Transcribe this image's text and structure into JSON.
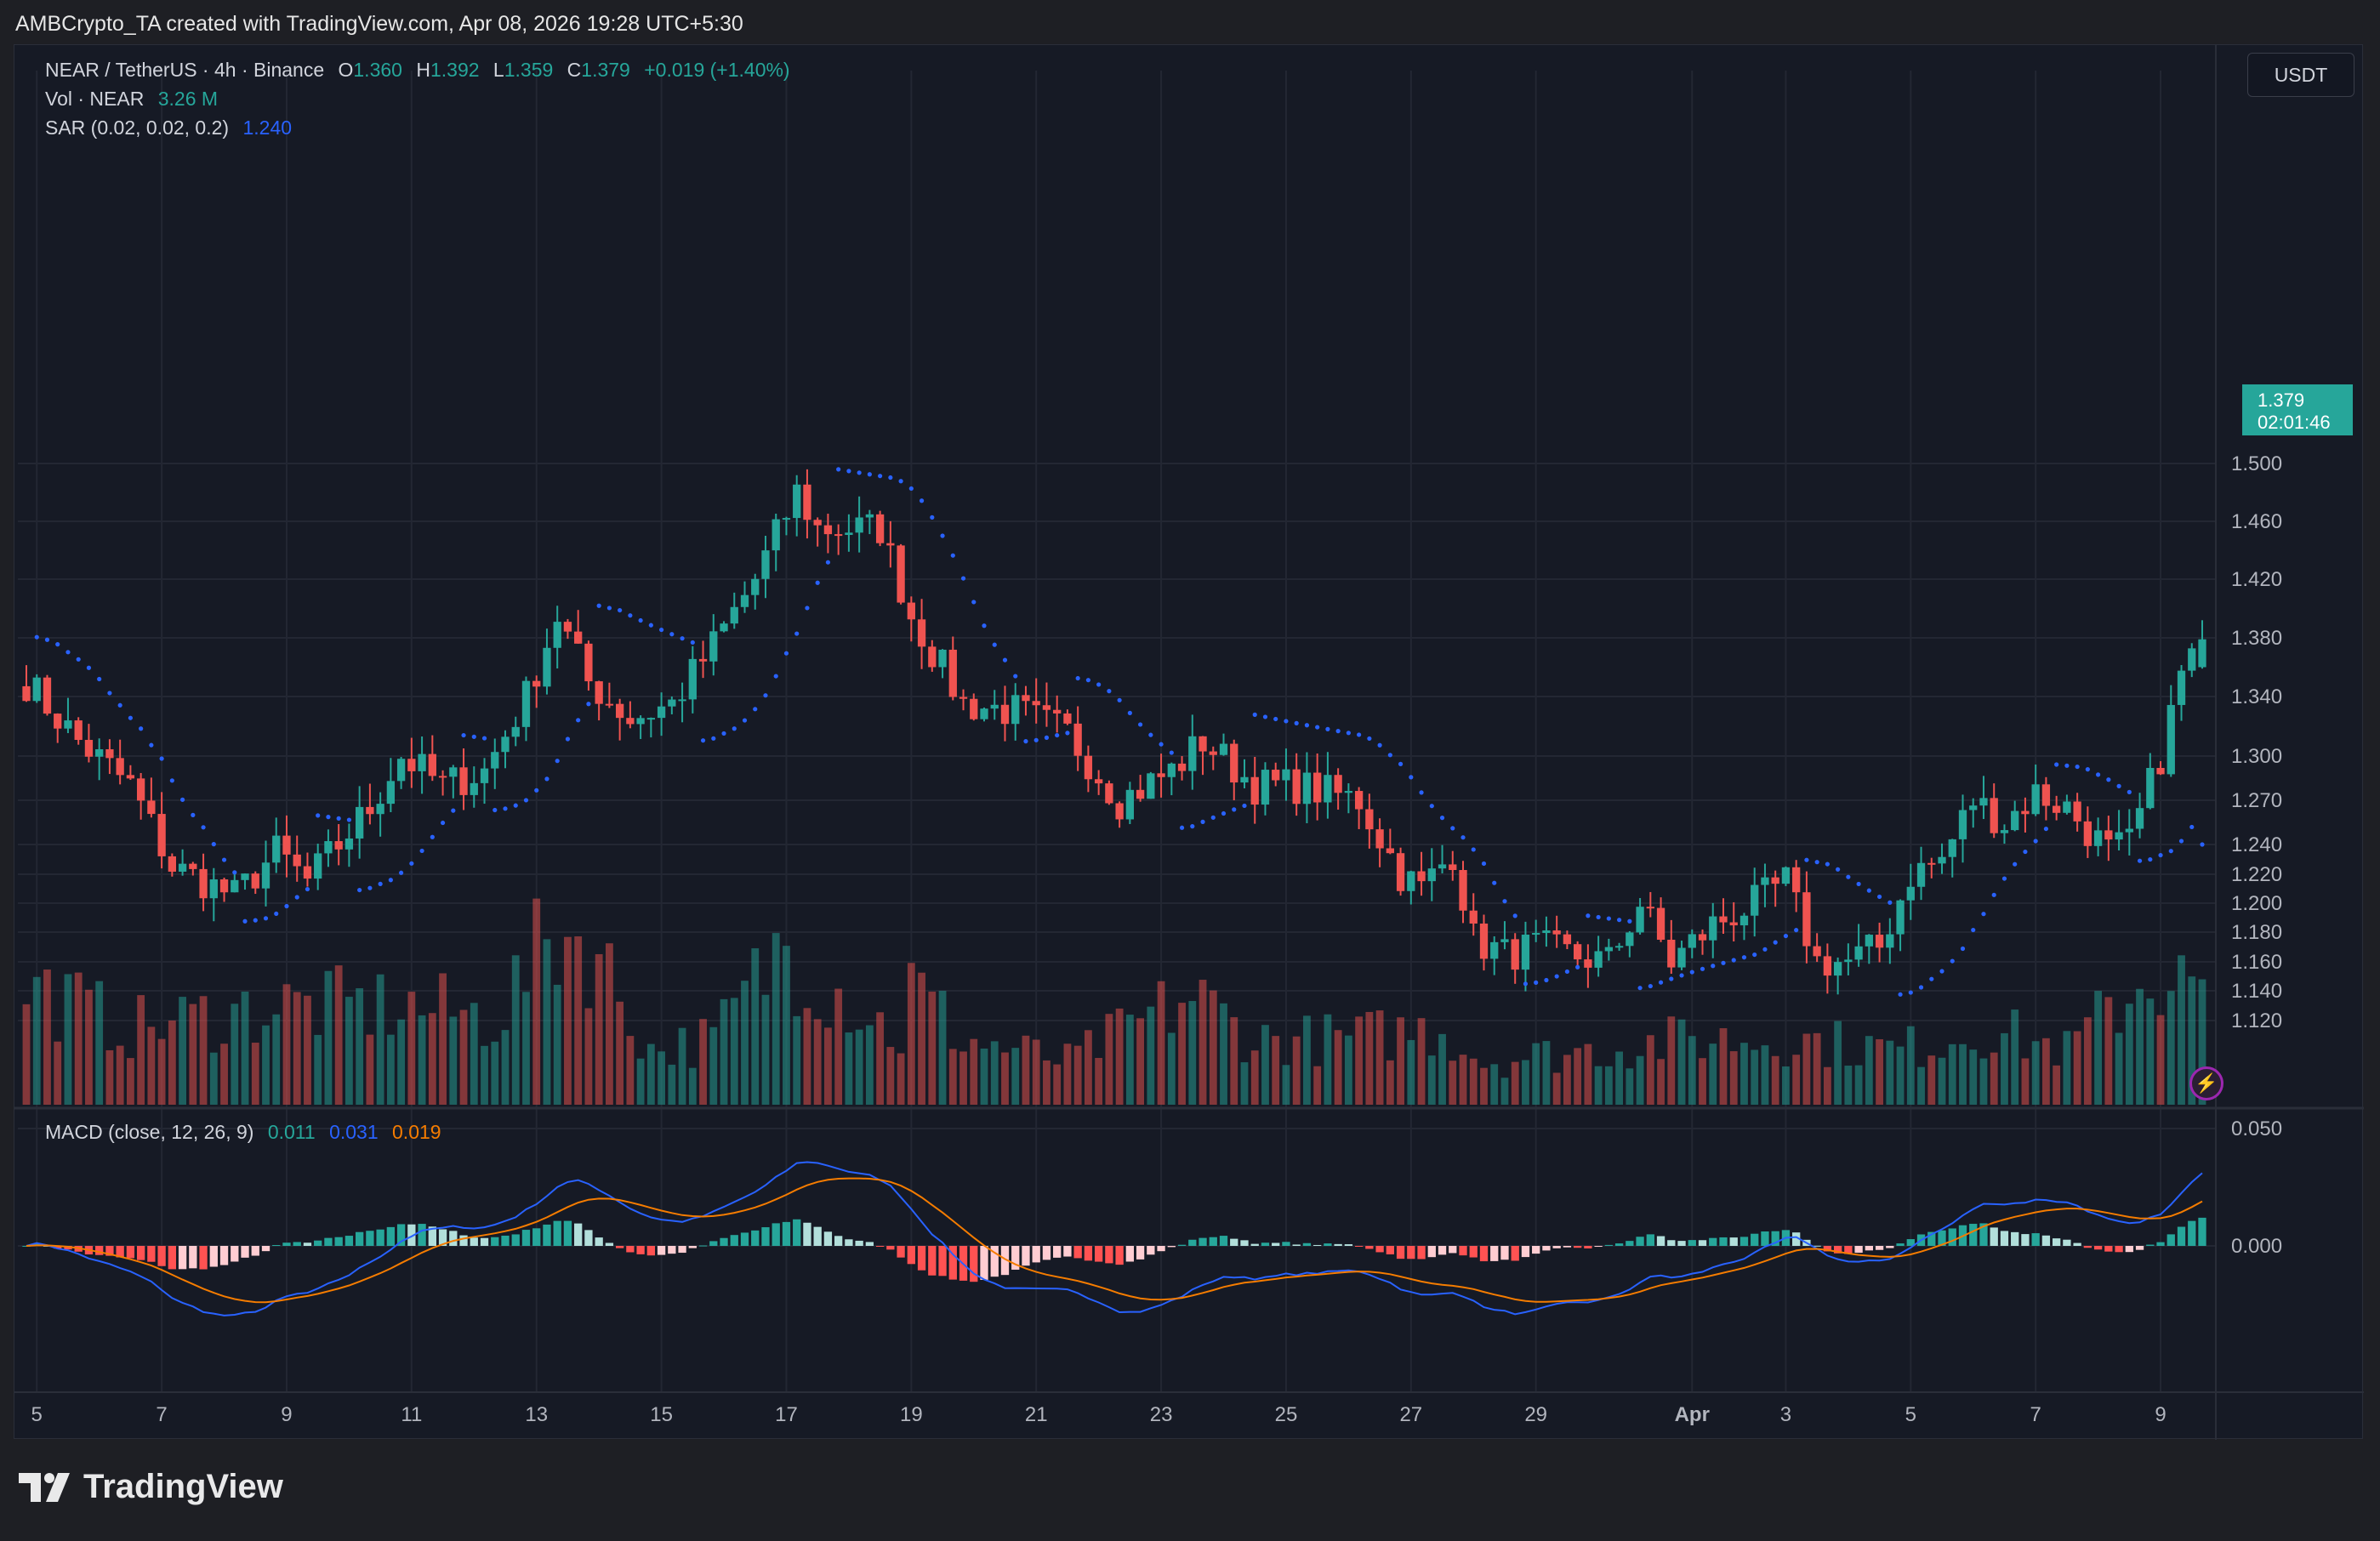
{
  "header": {
    "caption": "AMBCrypto_TA created with TradingView.com, Apr 08, 2026 19:28 UTC+5:30"
  },
  "legend": {
    "symbol": "NEAR / TetherUS · 4h · Binance",
    "open_label": "O",
    "open": "1.360",
    "high_label": "H",
    "high": "1.392",
    "low_label": "L",
    "low": "1.359",
    "close_label": "C",
    "close": "1.379",
    "change": "+0.019 (+1.40%)",
    "vol_label": "Vol · NEAR",
    "vol_value": "3.26 M",
    "sar_label": "SAR (0.02, 0.02, 0.2)",
    "sar_value": "1.240",
    "macd_label": "MACD (close, 12, 26, 9)",
    "macd_hist": "0.011",
    "macd_line": "0.031",
    "macd_signal": "0.019"
  },
  "currency_button": "USDT",
  "last_price": {
    "price": "1.379",
    "countdown": "02:01:46"
  },
  "brand": {
    "name": "TradingView",
    "logo_icon": "tradingview-logo-icon"
  },
  "colors": {
    "up": "#26a69a",
    "down": "#ef5350",
    "sar": "#2962ff",
    "macd": "#2962ff",
    "signal": "#f57c00",
    "background": "#161a25",
    "grid": "#232733"
  },
  "chart_data": {
    "type": "candlestick",
    "symbol": "NEAR/USDT",
    "interval": "4h",
    "price_axis": {
      "ticks": [
        "1.500",
        "1.460",
        "1.420",
        "1.380",
        "1.340",
        "1.300",
        "1.270",
        "1.240",
        "1.220",
        "1.200",
        "1.180",
        "1.160",
        "1.140",
        "1.120"
      ],
      "tick_values": [
        1.5,
        1.46,
        1.42,
        1.38,
        1.34,
        1.3,
        1.27,
        1.24,
        1.22,
        1.2,
        1.18,
        1.16,
        1.14,
        1.12
      ],
      "range": [
        1.105,
        1.535
      ]
    },
    "macd_axis": {
      "ticks": [
        "0.050",
        "0.000"
      ],
      "tick_values": [
        0.05,
        0.0
      ],
      "range": [
        -0.045,
        0.065
      ]
    },
    "x_axis": {
      "ticks": [
        "5",
        "7",
        "9",
        "11",
        "13",
        "15",
        "17",
        "19",
        "21",
        "23",
        "25",
        "27",
        "29",
        "Apr",
        "3",
        "5",
        "7",
        "9"
      ],
      "tick_index": [
        1,
        13,
        25,
        37,
        49,
        61,
        73,
        85,
        97,
        109,
        121,
        133,
        145,
        160,
        169,
        181,
        193,
        205
      ]
    },
    "close_anchors": [
      [
        0,
        1.35
      ],
      [
        5,
        1.31
      ],
      [
        10,
        1.28
      ],
      [
        14,
        1.225
      ],
      [
        20,
        1.205
      ],
      [
        24,
        1.235
      ],
      [
        27,
        1.215
      ],
      [
        33,
        1.265
      ],
      [
        36,
        1.3
      ],
      [
        40,
        1.28
      ],
      [
        44,
        1.29
      ],
      [
        48,
        1.34
      ],
      [
        51,
        1.395
      ],
      [
        54,
        1.35
      ],
      [
        58,
        1.325
      ],
      [
        62,
        1.335
      ],
      [
        66,
        1.375
      ],
      [
        70,
        1.42
      ],
      [
        74,
        1.48
      ],
      [
        76,
        1.455
      ],
      [
        82,
        1.455
      ],
      [
        85,
        1.395
      ],
      [
        90,
        1.335
      ],
      [
        95,
        1.33
      ],
      [
        100,
        1.315
      ],
      [
        105,
        1.27
      ],
      [
        110,
        1.29
      ],
      [
        113,
        1.31
      ],
      [
        118,
        1.28
      ],
      [
        122,
        1.28
      ],
      [
        125,
        1.275
      ],
      [
        128,
        1.27
      ],
      [
        132,
        1.22
      ],
      [
        134,
        1.21
      ],
      [
        137,
        1.235
      ],
      [
        139,
        1.175
      ],
      [
        142,
        1.165
      ],
      [
        145,
        1.17
      ],
      [
        148,
        1.165
      ],
      [
        152,
        1.16
      ],
      [
        155,
        1.2
      ],
      [
        158,
        1.16
      ],
      [
        162,
        1.185
      ],
      [
        166,
        1.2
      ],
      [
        169,
        1.215
      ],
      [
        172,
        1.16
      ],
      [
        175,
        1.16
      ],
      [
        178,
        1.17
      ],
      [
        181,
        1.22
      ],
      [
        184,
        1.23
      ],
      [
        187,
        1.27
      ],
      [
        190,
        1.255
      ],
      [
        193,
        1.275
      ],
      [
        196,
        1.265
      ],
      [
        200,
        1.235
      ],
      [
        202,
        1.24
      ],
      [
        205,
        1.3
      ],
      [
        207,
        1.355
      ],
      [
        209,
        1.379
      ]
    ],
    "volume_profile": [
      [
        0,
        0.55
      ],
      [
        10,
        0.35
      ],
      [
        24,
        0.45
      ],
      [
        36,
        0.45
      ],
      [
        45,
        0.4
      ],
      [
        51,
        0.8
      ],
      [
        54,
        0.75
      ],
      [
        60,
        0.25
      ],
      [
        66,
        0.3
      ],
      [
        73,
        0.75
      ],
      [
        76,
        0.6
      ],
      [
        84,
        0.3
      ],
      [
        85,
        0.55
      ],
      [
        90,
        0.3
      ],
      [
        100,
        0.2
      ],
      [
        112,
        0.5
      ],
      [
        118,
        0.3
      ],
      [
        126,
        0.3
      ],
      [
        136,
        0.35
      ],
      [
        140,
        0.2
      ],
      [
        150,
        0.25
      ],
      [
        160,
        0.3
      ],
      [
        170,
        0.3
      ],
      [
        180,
        0.25
      ],
      [
        188,
        0.35
      ],
      [
        196,
        0.25
      ],
      [
        204,
        0.6
      ],
      [
        207,
        0.55
      ],
      [
        209,
        0.5
      ]
    ],
    "ohlc_final": {
      "open": 1.36,
      "high": 1.392,
      "low": 1.359,
      "close": 1.379
    },
    "sar_last": 1.24,
    "macd_last": {
      "histogram": 0.011,
      "macd": 0.031,
      "signal": 0.019
    }
  }
}
